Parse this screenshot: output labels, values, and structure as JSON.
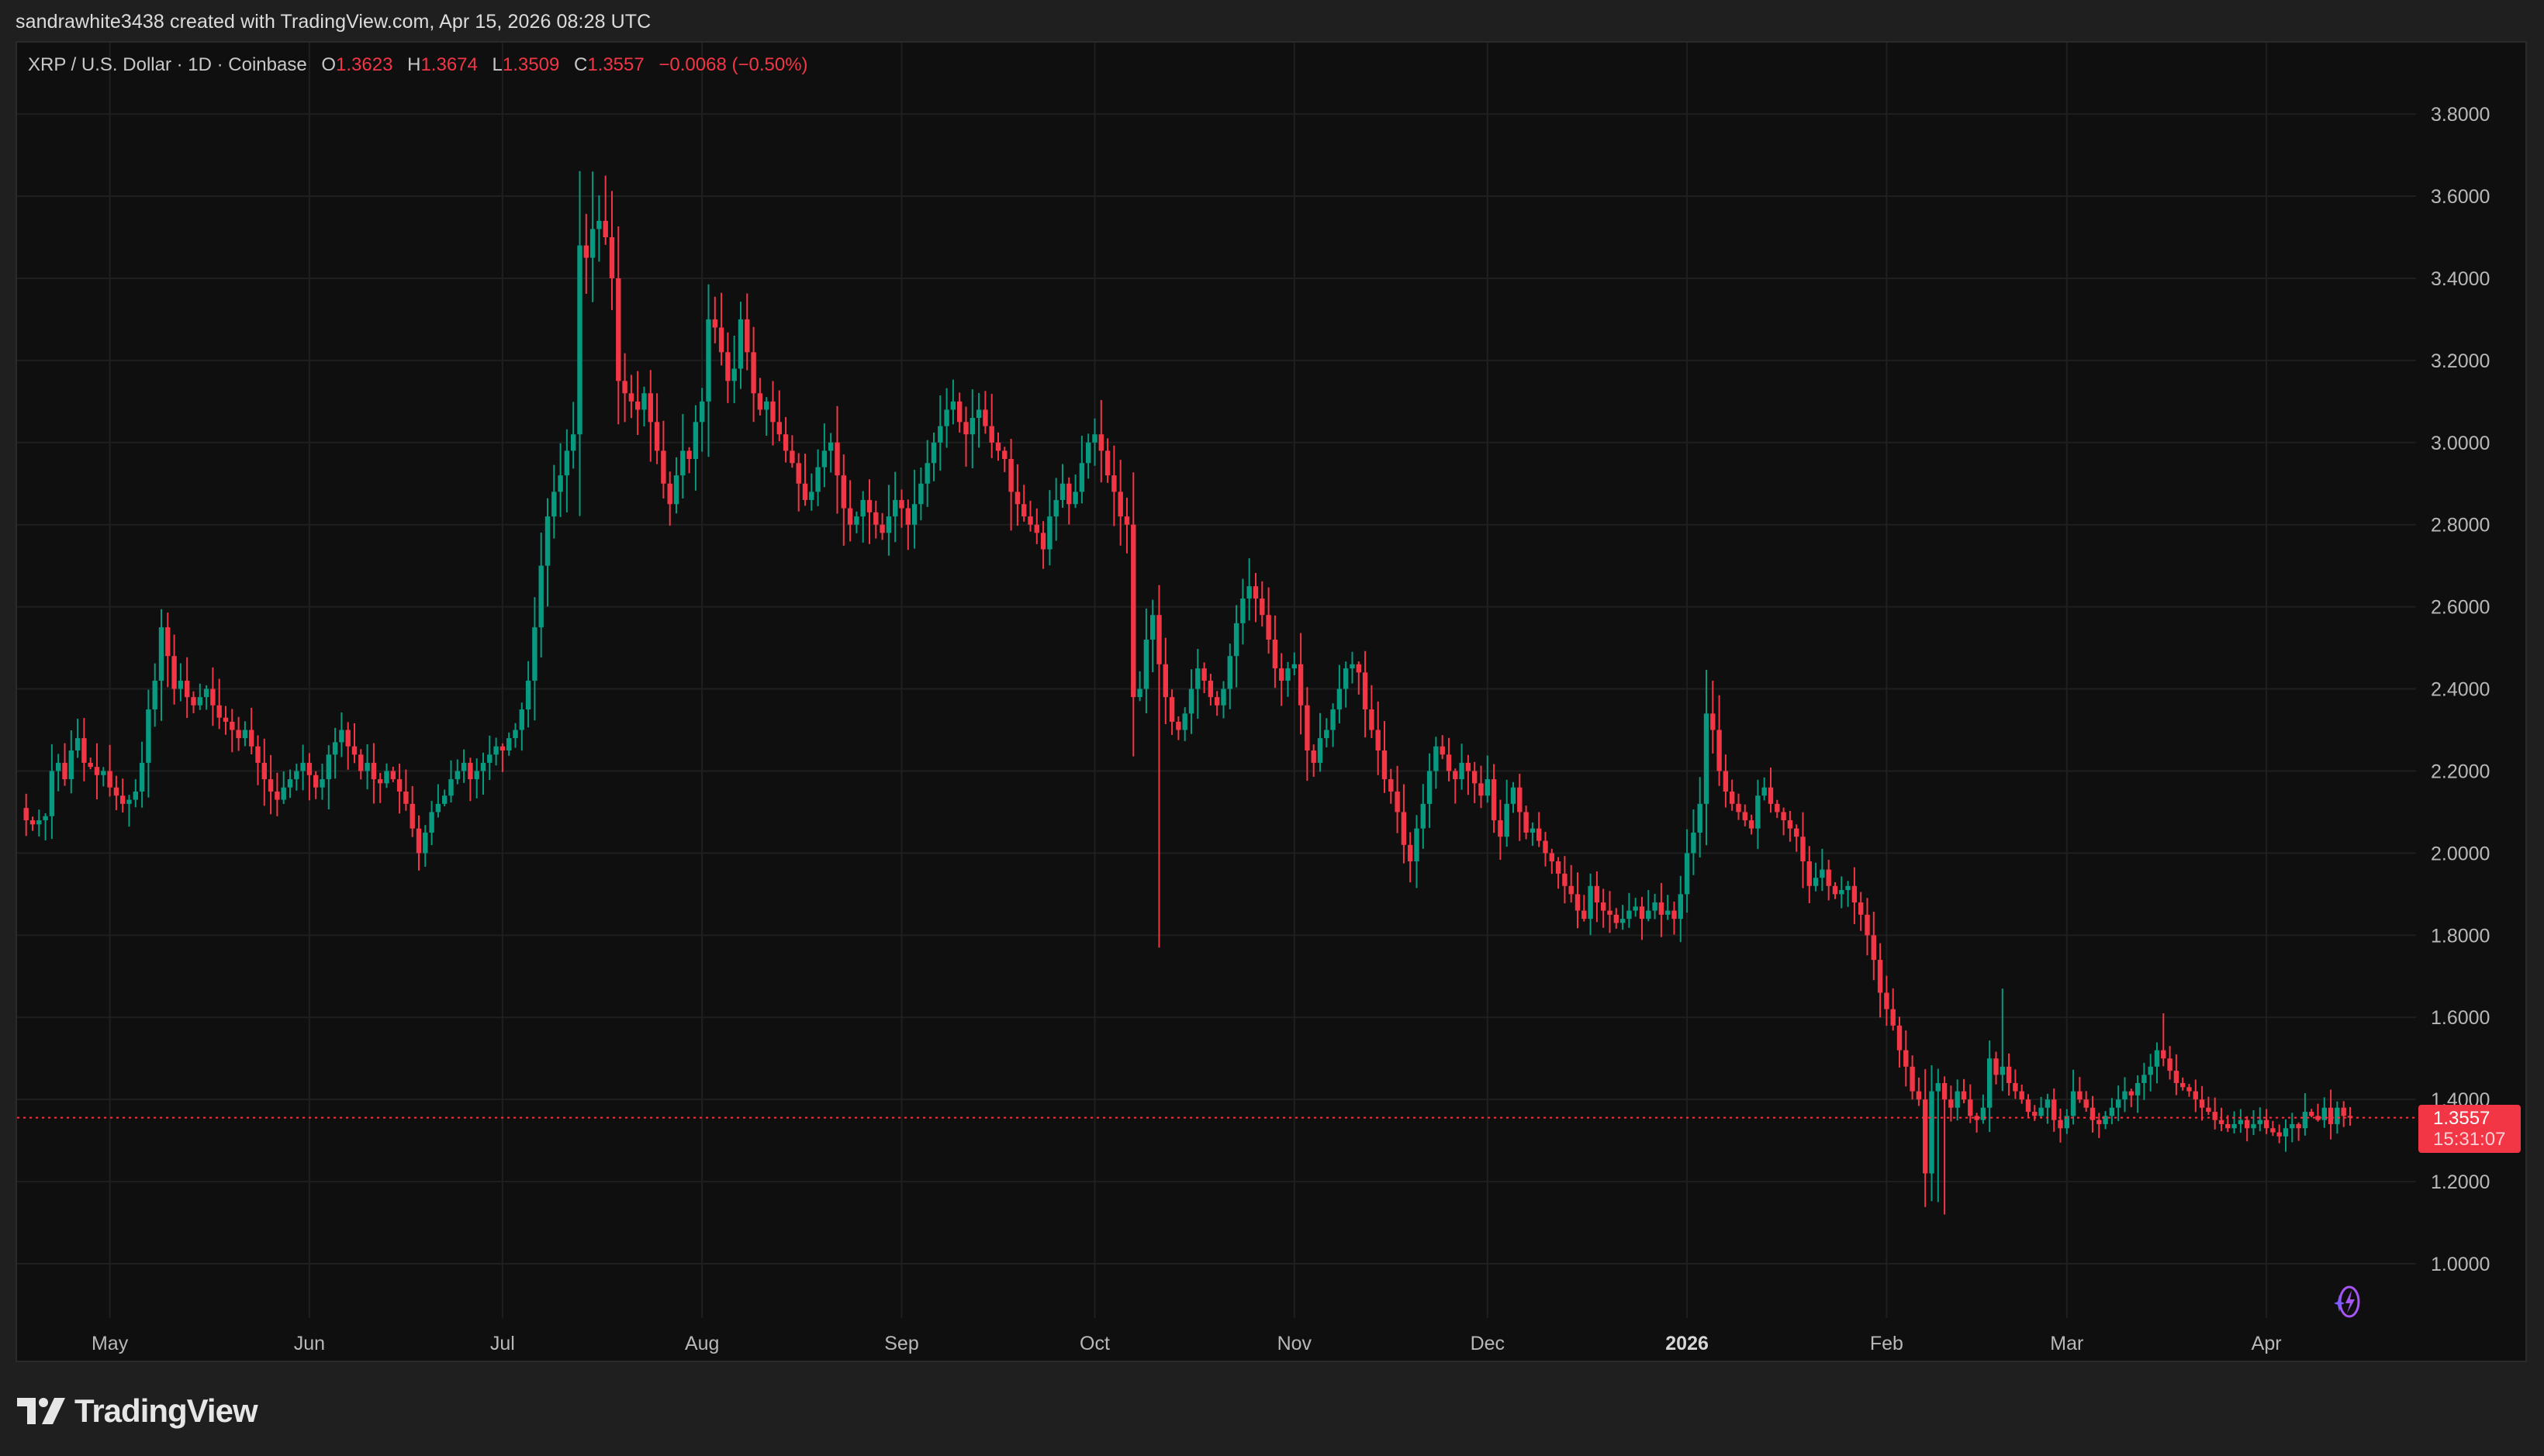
{
  "header": {
    "credit": "sandrawhite3438 created with TradingView.com, Apr 15, 2026 08:28 UTC"
  },
  "legend": {
    "symbol": "XRP / U.S. Dollar · 1D · Coinbase",
    "open_label": "O",
    "open": "1.3623",
    "high_label": "H",
    "high": "1.3674",
    "low_label": "L",
    "low": "1.3509",
    "close_label": "C",
    "close": "1.3557",
    "change": "−0.0068 (−0.50%)"
  },
  "price_badge": {
    "price": "1.3557",
    "countdown": "15:31:07"
  },
  "logo": {
    "text": "TradingView"
  },
  "colors": {
    "up": "#089981",
    "down": "#f23645",
    "grid": "#1f1f1f",
    "chart_bg": "#0f0f0f",
    "page_bg": "#1f1f1f",
    "axis_text": "#b8b8b8",
    "price_line": "#f23645",
    "assistant_icon": "#a855f7"
  },
  "chart_data": {
    "type": "candlestick",
    "title": "XRP / U.S. Dollar · 1D · Coinbase",
    "xlabel": "",
    "ylabel": "",
    "ylim": [
      0.9,
      3.95
    ],
    "y_ticks": [
      1.0,
      1.2,
      1.4,
      1.6,
      1.8,
      2.0,
      2.2,
      2.4,
      2.6,
      2.8,
      3.0,
      3.2,
      3.4,
      3.6,
      3.8
    ],
    "y_tick_labels": [
      "1.0000",
      "1.2000",
      "1.4000",
      "1.6000",
      "1.8000",
      "2.0000",
      "2.2000",
      "2.4000",
      "2.6000",
      "2.8000",
      "3.0000",
      "3.2000",
      "3.4000",
      "3.6000",
      "3.8000"
    ],
    "x_ticks": [
      {
        "label": "May",
        "day": 13
      },
      {
        "label": "Jun",
        "day": 44
      },
      {
        "label": "Jul",
        "day": 74
      },
      {
        "label": "Aug",
        "day": 105
      },
      {
        "label": "Sep",
        "day": 136
      },
      {
        "label": "Oct",
        "day": 166
      },
      {
        "label": "Nov",
        "day": 197
      },
      {
        "label": "Dec",
        "day": 227
      },
      {
        "label": "2026",
        "day": 258,
        "bold": true
      },
      {
        "label": "Feb",
        "day": 289
      },
      {
        "label": "Mar",
        "day": 317
      },
      {
        "label": "Apr",
        "day": 348
      }
    ],
    "grid": true,
    "start_date": "2025-04-18",
    "end_date": "2026-04-15",
    "last_price": 1.3557,
    "closes": [
      2.08,
      2.07,
      2.08,
      2.09,
      2.2,
      2.22,
      2.18,
      2.25,
      2.28,
      2.22,
      2.21,
      2.19,
      2.2,
      2.16,
      2.14,
      2.12,
      2.13,
      2.15,
      2.22,
      2.35,
      2.42,
      2.55,
      2.48,
      2.4,
      2.42,
      2.38,
      2.36,
      2.38,
      2.4,
      2.36,
      2.33,
      2.32,
      2.3,
      2.28,
      2.3,
      2.26,
      2.22,
      2.18,
      2.15,
      2.13,
      2.16,
      2.18,
      2.2,
      2.22,
      2.19,
      2.16,
      2.18,
      2.24,
      2.27,
      2.3,
      2.26,
      2.24,
      2.2,
      2.22,
      2.18,
      2.17,
      2.2,
      2.18,
      2.15,
      2.12,
      2.06,
      2.0,
      2.05,
      2.1,
      2.12,
      2.14,
      2.18,
      2.2,
      2.22,
      2.18,
      2.2,
      2.22,
      2.24,
      2.26,
      2.25,
      2.28,
      2.3,
      2.35,
      2.42,
      2.55,
      2.7,
      2.82,
      2.88,
      2.92,
      2.98,
      3.02,
      3.48,
      3.45,
      3.52,
      3.54,
      3.5,
      3.4,
      3.15,
      3.12,
      3.1,
      3.08,
      3.12,
      3.05,
      2.98,
      2.9,
      2.85,
      2.92,
      2.98,
      2.96,
      3.05,
      3.1,
      3.3,
      3.28,
      3.22,
      3.15,
      3.18,
      3.3,
      3.22,
      3.12,
      3.08,
      3.1,
      3.05,
      3.02,
      2.98,
      2.95,
      2.9,
      2.86,
      2.88,
      2.94,
      2.98,
      3.0,
      2.92,
      2.84,
      2.8,
      2.82,
      2.86,
      2.83,
      2.8,
      2.78,
      2.82,
      2.86,
      2.84,
      2.8,
      2.85,
      2.9,
      2.95,
      3.0,
      3.04,
      3.08,
      3.1,
      3.05,
      3.02,
      3.06,
      3.08,
      3.04,
      3.0,
      2.98,
      2.96,
      2.88,
      2.85,
      2.82,
      2.8,
      2.78,
      2.74,
      2.82,
      2.86,
      2.9,
      2.85,
      2.88,
      2.95,
      3.0,
      3.02,
      2.98,
      2.92,
      2.88,
      2.82,
      2.8,
      2.38,
      2.4,
      2.52,
      2.58,
      2.46,
      2.38,
      2.32,
      2.3,
      2.34,
      2.4,
      2.45,
      2.42,
      2.38,
      2.36,
      2.4,
      2.48,
      2.56,
      2.62,
      2.65,
      2.62,
      2.58,
      2.52,
      2.45,
      2.42,
      2.45,
      2.46,
      2.36,
      2.25,
      2.22,
      2.28,
      2.3,
      2.35,
      2.4,
      2.45,
      2.46,
      2.44,
      2.35,
      2.3,
      2.25,
      2.18,
      2.15,
      2.1,
      2.02,
      1.98,
      2.06,
      2.12,
      2.2,
      2.26,
      2.24,
      2.2,
      2.18,
      2.22,
      2.2,
      2.17,
      2.14,
      2.18,
      2.08,
      2.04,
      2.12,
      2.16,
      2.1,
      2.05,
      2.06,
      2.03,
      2.0,
      1.98,
      1.95,
      1.92,
      1.9,
      1.86,
      1.84,
      1.92,
      1.88,
      1.86,
      1.85,
      1.83,
      1.84,
      1.86,
      1.87,
      1.84,
      1.86,
      1.88,
      1.85,
      1.86,
      1.84,
      1.9,
      2.0,
      2.05,
      2.12,
      2.34,
      2.3,
      2.2,
      2.15,
      2.12,
      2.1,
      2.08,
      2.06,
      2.14,
      2.16,
      2.12,
      2.1,
      2.08,
      2.06,
      2.04,
      1.98,
      1.92,
      1.94,
      1.96,
      1.92,
      1.9,
      1.91,
      1.92,
      1.88,
      1.85,
      1.8,
      1.74,
      1.66,
      1.62,
      1.58,
      1.52,
      1.48,
      1.42,
      1.4,
      1.22,
      1.42,
      1.44,
      1.4,
      1.38,
      1.42,
      1.4,
      1.36,
      1.35,
      1.38,
      1.5,
      1.46,
      1.48,
      1.44,
      1.42,
      1.4,
      1.37,
      1.36,
      1.38,
      1.4,
      1.35,
      1.33,
      1.36,
      1.42,
      1.4,
      1.38,
      1.35,
      1.34,
      1.36,
      1.38,
      1.4,
      1.42,
      1.41,
      1.44,
      1.46,
      1.48,
      1.52,
      1.5,
      1.47,
      1.44,
      1.43,
      1.42,
      1.4,
      1.38,
      1.37,
      1.35,
      1.34,
      1.33,
      1.34,
      1.35,
      1.33,
      1.34,
      1.35,
      1.33,
      1.32,
      1.31,
      1.33,
      1.34,
      1.33,
      1.37,
      1.36,
      1.35,
      1.38,
      1.34,
      1.38,
      1.36,
      1.3557
    ],
    "special_wicks": [
      {
        "day": 176,
        "low": 1.77
      },
      {
        "day": 298,
        "low": 1.12
      },
      {
        "day": 297,
        "low": 1.15
      },
      {
        "day": 88,
        "high": 3.66
      },
      {
        "day": 90,
        "high": 3.65
      },
      {
        "day": 262,
        "high": 2.42
      },
      {
        "day": 307,
        "high": 1.67
      },
      {
        "day": 332,
        "high": 1.61
      }
    ]
  }
}
